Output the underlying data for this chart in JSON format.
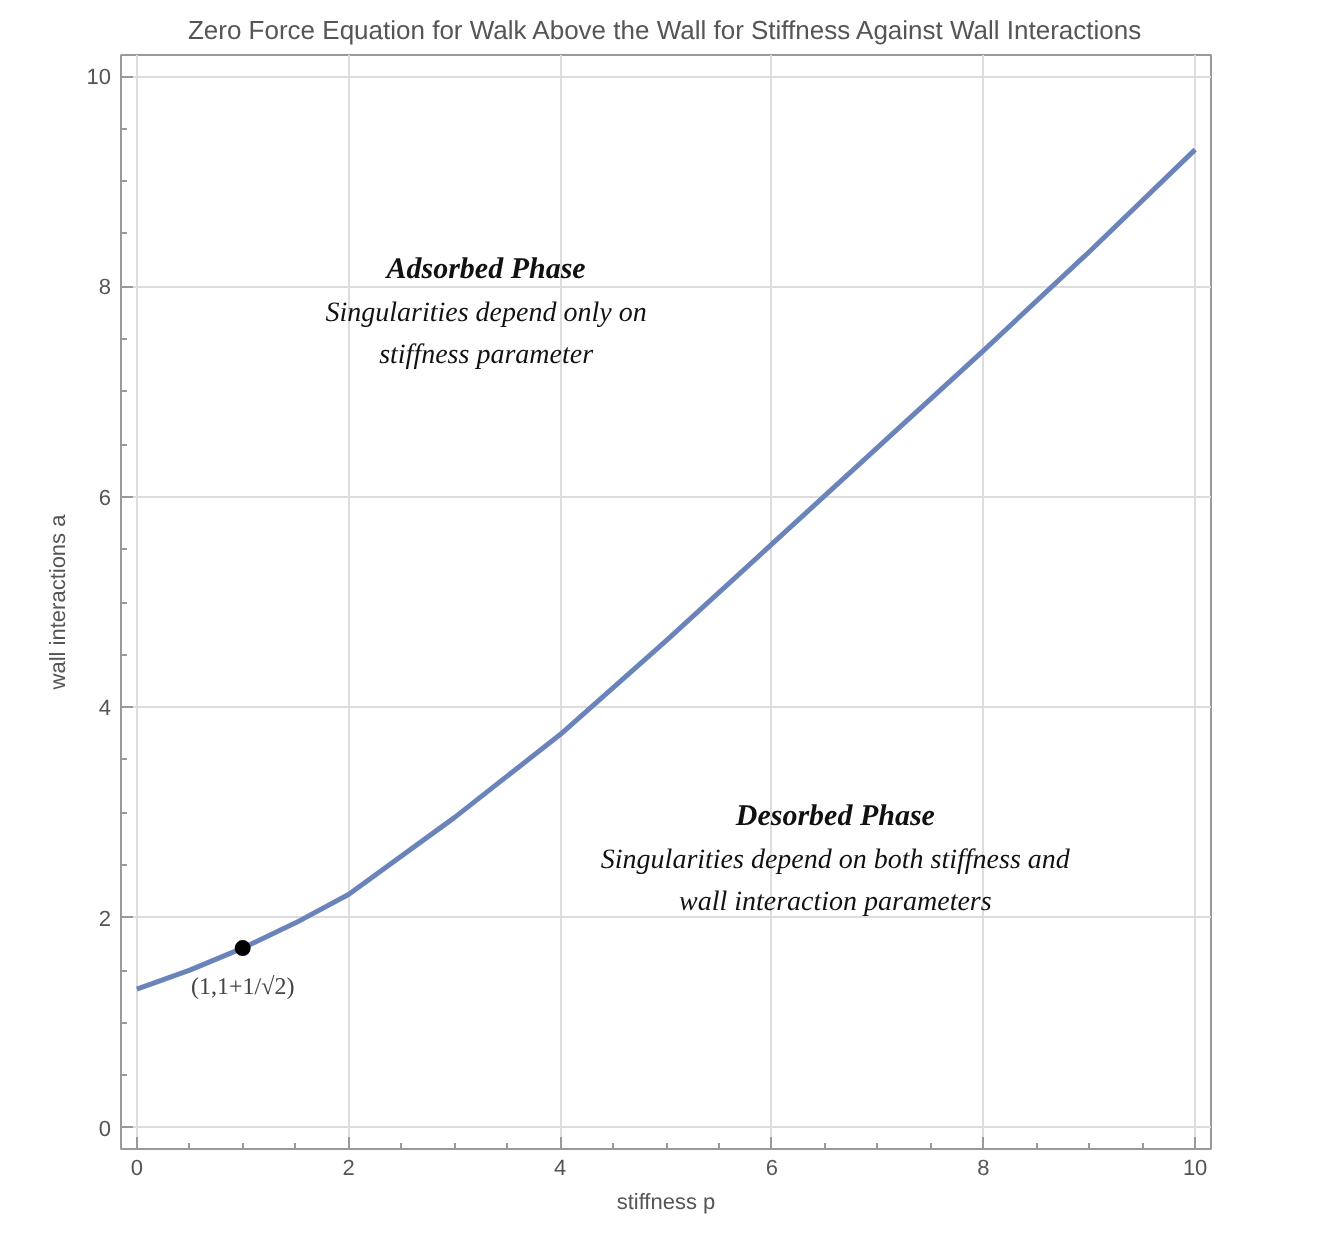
{
  "chart_data": {
    "type": "line",
    "title": "Zero Force Equation for Walk Above the Wall for Stiffness Against Wall Interactions",
    "xlabel": "stiffness p",
    "ylabel": "wall interactions a",
    "x": [
      0,
      0.5,
      1,
      1.5,
      2,
      3,
      4,
      5,
      6,
      7,
      8,
      9,
      10
    ],
    "series": [
      {
        "color": "#6a84bb",
        "values": [
          1.32,
          1.5,
          1.71,
          1.95,
          2.22,
          2.95,
          3.74,
          4.63,
          5.55,
          6.47,
          7.39,
          8.33,
          9.3
        ]
      },
      {
        "type": "scatter",
        "color": "#000000",
        "x": [
          1
        ],
        "values": [
          1.71
        ],
        "marker": "circle"
      }
    ],
    "annotations": [
      {
        "text": "(1,1+1/√2)",
        "x": 1,
        "y": 1.71
      },
      "Adsorbed Phase",
      "Singularities depend only on",
      "stiffness parameter",
      "Desorbed Phase",
      "Singularities depend on both stiffness and",
      "wall interaction parameters"
    ],
    "xlim": [
      -0.15,
      10.15
    ],
    "ylim": [
      -0.2,
      10.2
    ],
    "xticks": [
      0,
      2,
      4,
      6,
      8,
      10
    ],
    "yticks": [
      0,
      2,
      4,
      6,
      8,
      10
    ],
    "grid": true,
    "marker": "none",
    "line_style": "solid"
  }
}
